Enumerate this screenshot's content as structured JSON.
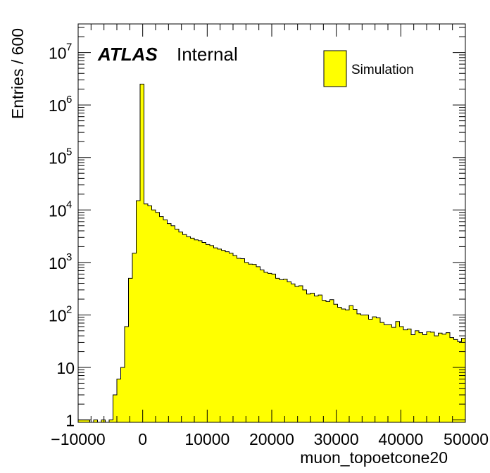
{
  "chart_data": {
    "type": "bar",
    "title": "",
    "xlabel": "muon_topoetcone20",
    "ylabel": "Entries / 600",
    "xlim": [
      -10000,
      50000
    ],
    "ylim": [
      0.9,
      35000000
    ],
    "yscale": "log",
    "bin_width": 600,
    "grid": false,
    "legend_position": "top-right",
    "fill_color": "#ffff00",
    "line_color": "#000000",
    "x_ticks": [
      {
        "value": -10000,
        "label": "−10000"
      },
      {
        "value": 0,
        "label": "0"
      },
      {
        "value": 10000,
        "label": "10000"
      },
      {
        "value": 20000,
        "label": "20000"
      },
      {
        "value": 30000,
        "label": "30000"
      },
      {
        "value": 40000,
        "label": "40000"
      },
      {
        "value": 50000,
        "label": "50000"
      }
    ],
    "y_ticks": [
      {
        "value": 1,
        "label": "1",
        "base": "",
        "exp": ""
      },
      {
        "value": 10,
        "label": "10",
        "base": "",
        "exp": ""
      },
      {
        "value": 100,
        "label": "",
        "base": "10",
        "exp": "2"
      },
      {
        "value": 1000,
        "label": "",
        "base": "10",
        "exp": "3"
      },
      {
        "value": 10000,
        "label": "",
        "base": "10",
        "exp": "4"
      },
      {
        "value": 100000,
        "label": "",
        "base": "10",
        "exp": "5"
      },
      {
        "value": 1000000,
        "label": "",
        "base": "10",
        "exp": "6"
      },
      {
        "value": 10000000,
        "label": "",
        "base": "10",
        "exp": "7"
      }
    ],
    "series": [
      {
        "name": "Simulation",
        "bin_low_edges": [
          -10000,
          -9400,
          -8800,
          -8200,
          -7600,
          -7000,
          -6400,
          -5800,
          -5200,
          -4600,
          -4000,
          -3400,
          -2800,
          -2200,
          -1600,
          -1000,
          -400,
          200,
          800,
          1400,
          2000,
          2600,
          3200,
          3800,
          4400,
          5000,
          5600,
          6200,
          6800,
          7400,
          8000,
          8600,
          9200,
          9800,
          10400,
          11000,
          11600,
          12200,
          12800,
          13400,
          14000,
          14600,
          15200,
          15800,
          16400,
          17000,
          17600,
          18200,
          18800,
          19400,
          20000,
          20600,
          21200,
          21800,
          22400,
          23000,
          23600,
          24200,
          24800,
          25400,
          26000,
          26600,
          27200,
          27800,
          28400,
          29000,
          29600,
          30200,
          30800,
          31400,
          32000,
          32600,
          33200,
          33800,
          34400,
          35000,
          35600,
          36200,
          36800,
          37400,
          38000,
          38600,
          39200,
          39800,
          40400,
          41000,
          41600,
          42200,
          42800,
          43400,
          44000,
          44600,
          45200,
          45800,
          46400,
          47000,
          47600,
          48200,
          48800,
          49400
        ],
        "values": [
          1,
          1,
          1,
          0,
          1,
          0,
          1,
          0,
          1,
          3,
          6,
          10,
          60,
          500,
          1500,
          15000,
          2500000,
          13000,
          12000,
          10000,
          9000,
          7500,
          6500,
          5500,
          5000,
          4300,
          3800,
          3400,
          3100,
          2900,
          2700,
          2600,
          2400,
          2200,
          2100,
          1900,
          1800,
          1700,
          1600,
          1500,
          1350,
          1200,
          1180,
          1000,
          930,
          920,
          830,
          720,
          650,
          620,
          600,
          500,
          470,
          480,
          430,
          390,
          350,
          360,
          300,
          250,
          260,
          230,
          240,
          190,
          180,
          195,
          160,
          140,
          130,
          125,
          150,
          128,
          105,
          100,
          100,
          83,
          92,
          88,
          72,
          65,
          65,
          58,
          75,
          60,
          52,
          54,
          42,
          50,
          46,
          42,
          48,
          47,
          40,
          45,
          43,
          46,
          37,
          34,
          31,
          36
        ],
        "fill": "#ffff00",
        "line": "#000000"
      }
    ],
    "annotations": {
      "atlas_label": "ATLAS",
      "status_label": "Internal"
    }
  }
}
